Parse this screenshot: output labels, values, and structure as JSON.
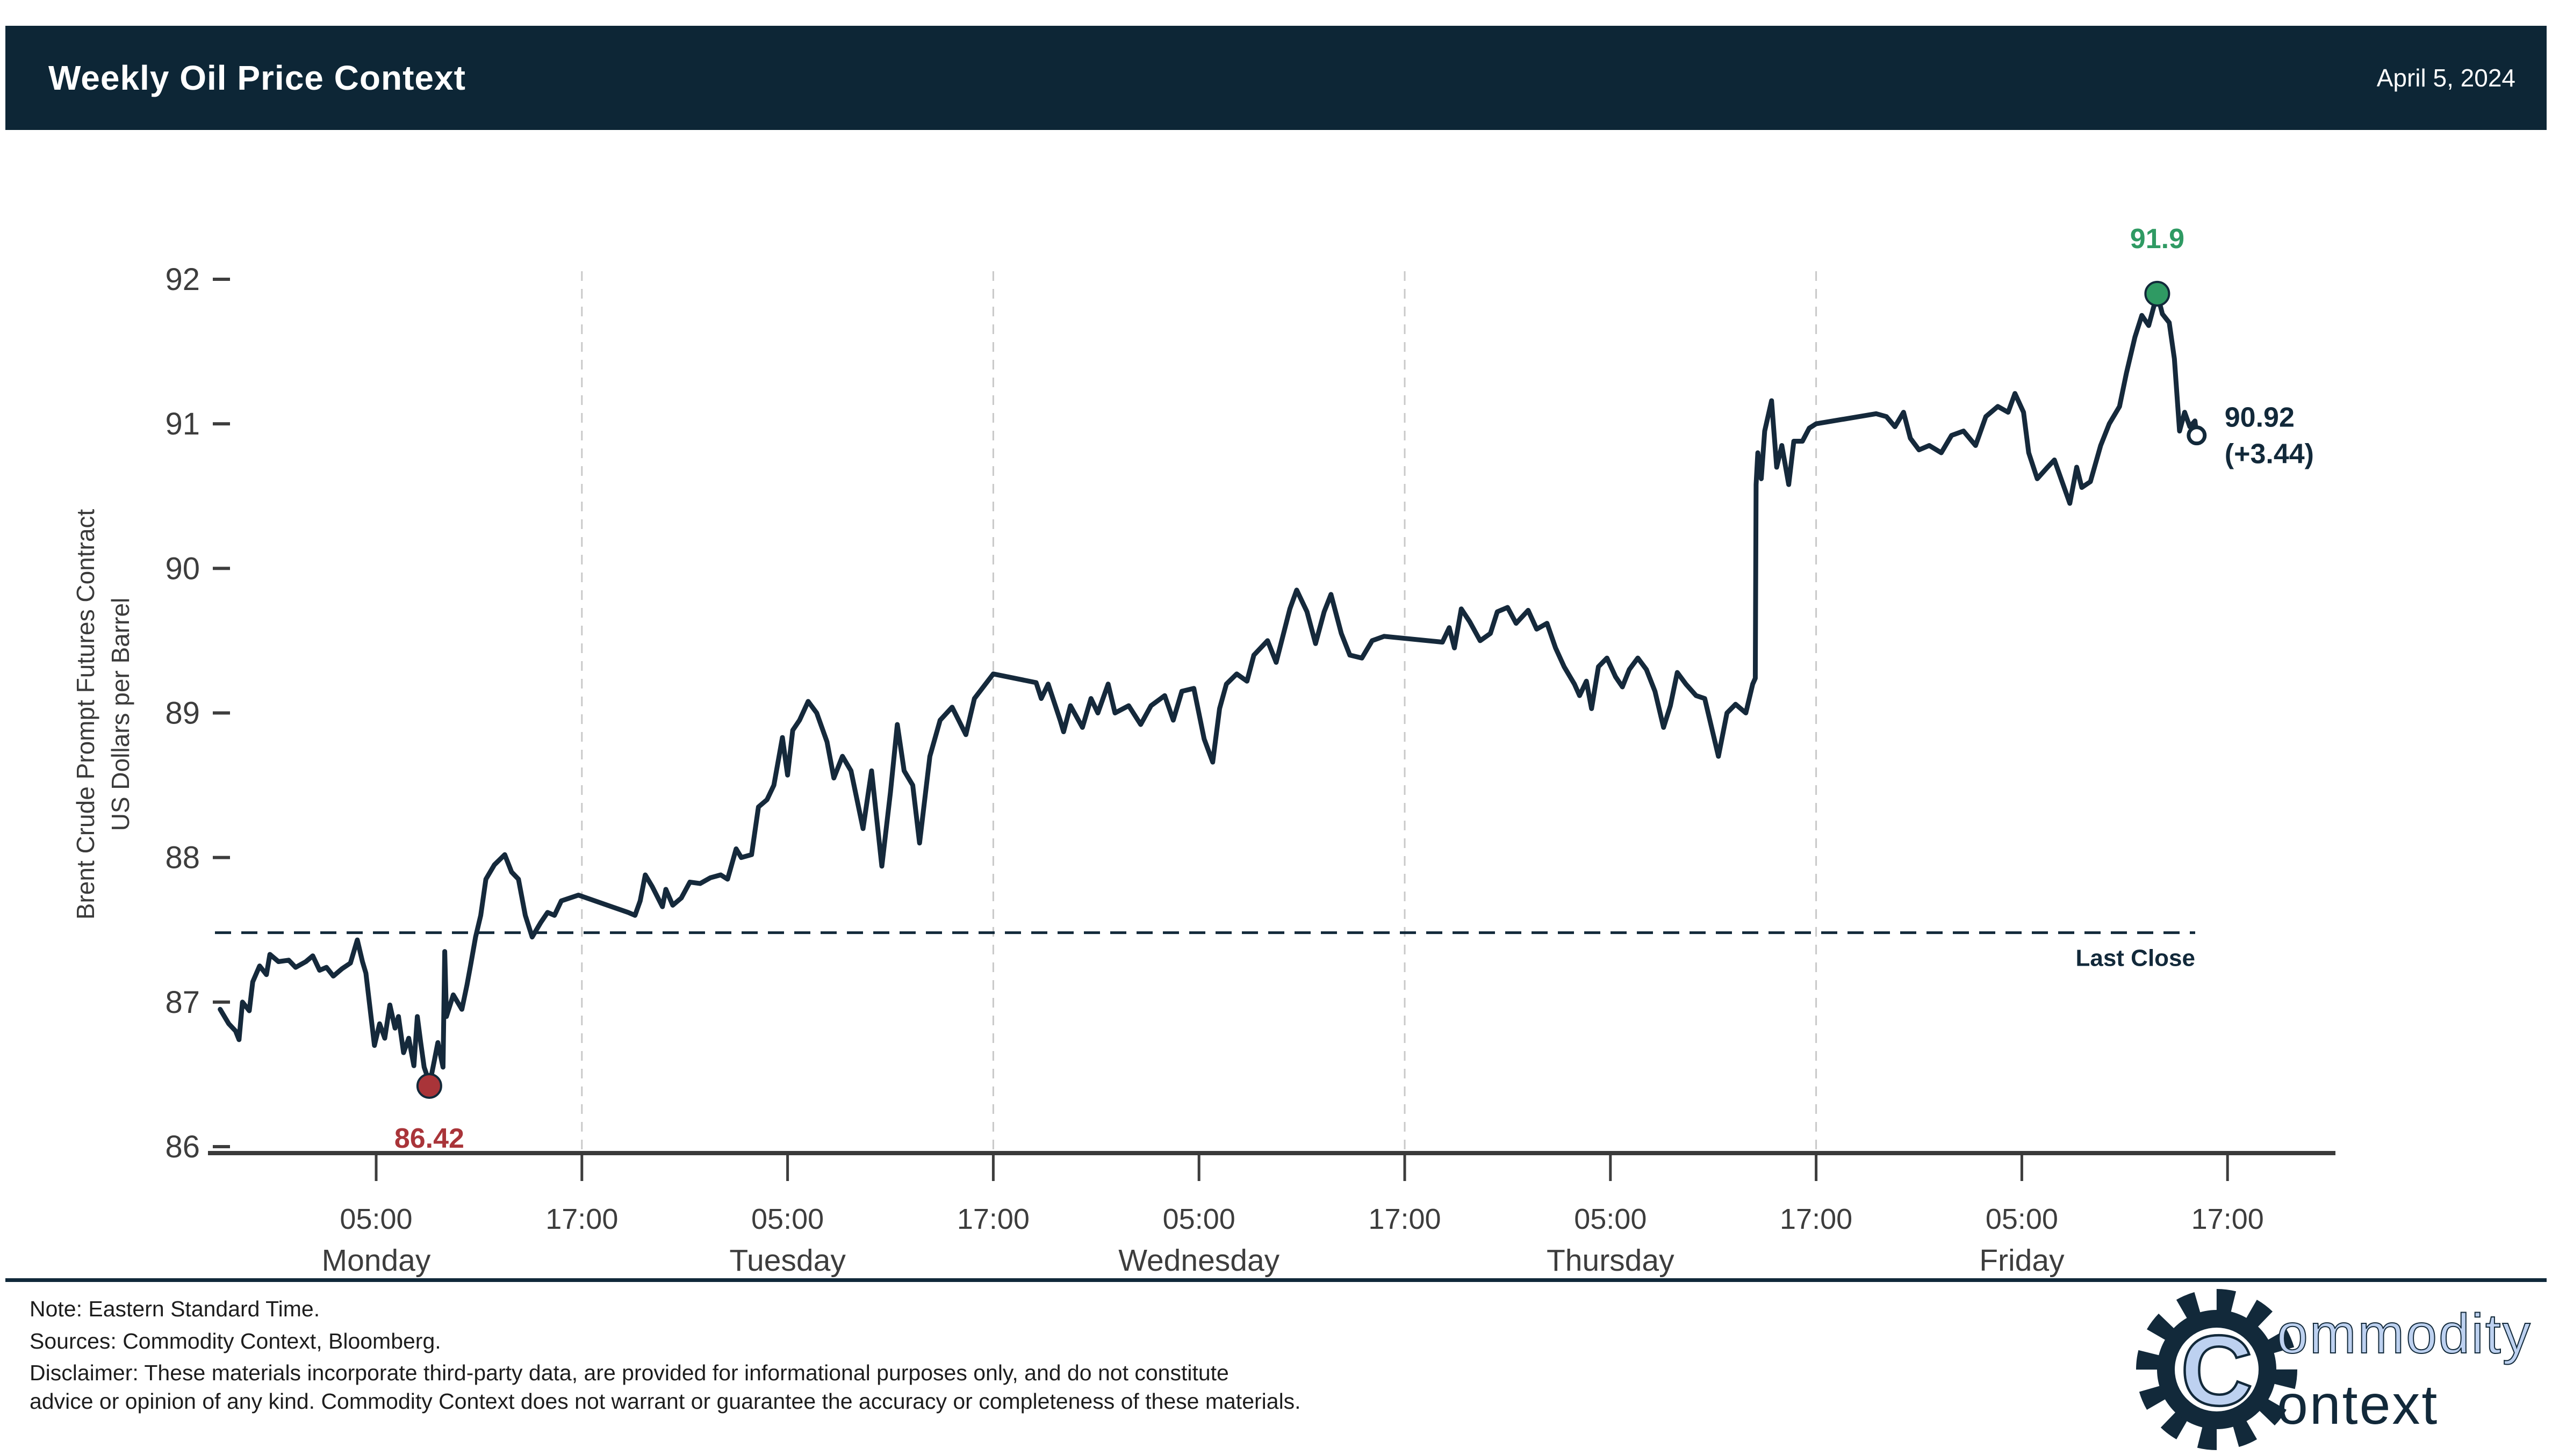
{
  "header": {
    "title": "Weekly Oil Price Context",
    "date": "April 5, 2024"
  },
  "colors": {
    "navy": "#12293a",
    "header_bg": "#0d2636",
    "line": "#15293b",
    "green": "#2f9a63",
    "red": "#a93439",
    "axis_gray": "#3a3a3a",
    "tick_text": "#3d3d3d",
    "gridline_gray": "#c9c9c9",
    "logo_blue": "#bdd1f0"
  },
  "footer": {
    "note": "Note: Eastern Standard Time.",
    "sources": "Sources: Commodity Context, Bloomberg.",
    "disclaimer_line1": "Disclaimer: These materials incorporate third-party data, are provided for informational purposes only, and do not constitute",
    "disclaimer_line2": "advice or opinion of any kind. Commodity Context does not warrant or guarantee the accuracy or completeness of these materials."
  },
  "logo": {
    "monogram": "C",
    "line1": "ommodity",
    "line2": "ontext"
  },
  "chart_data": {
    "type": "line",
    "title": "Weekly Oil Price Context",
    "ylabel_line1": "Brent Crude Prompt Futures Contract",
    "ylabel_line2": "US Dollars per Barrel",
    "ylim": [
      86,
      92
    ],
    "yticks": [
      86,
      87,
      88,
      89,
      90,
      91,
      92
    ],
    "x_unit": "hours from Monday 00:00 EST",
    "xticks": [
      {
        "h": 5,
        "label": "05:00",
        "day": "Monday"
      },
      {
        "h": 17,
        "label": "17:00",
        "day": ""
      },
      {
        "h": 29,
        "label": "05:00",
        "day": "Tuesday"
      },
      {
        "h": 41,
        "label": "17:00",
        "day": ""
      },
      {
        "h": 53,
        "label": "05:00",
        "day": "Wednesday"
      },
      {
        "h": 65,
        "label": "17:00",
        "day": ""
      },
      {
        "h": 77,
        "label": "05:00",
        "day": "Thursday"
      },
      {
        "h": 89,
        "label": "17:00",
        "day": ""
      },
      {
        "h": 101,
        "label": "05:00",
        "day": "Friday"
      },
      {
        "h": 113,
        "label": "17:00",
        "day": ""
      }
    ],
    "gridlines_hours": [
      17,
      41,
      65,
      89
    ],
    "grid": "vertical-dashed",
    "legend_position": "none",
    "last_close": {
      "value": 87.48,
      "label": "Last Close"
    },
    "annotations": {
      "max": {
        "h": 108.9,
        "price": 91.9,
        "label": "91.9"
      },
      "min": {
        "h": 8.1,
        "price": 86.42,
        "label": "86.42"
      },
      "last": {
        "h": 111.2,
        "price": 90.92,
        "label_line1": "90.92",
        "label_line2": "(+3.44)"
      }
    },
    "series": [
      {
        "name": "Brent Crude Prompt Futures Contract (USD/bbl)",
        "points": [
          [
            -4.1,
            86.95
          ],
          [
            -3.6,
            86.85
          ],
          [
            -3.2,
            86.8
          ],
          [
            -3.0,
            86.74
          ],
          [
            -2.8,
            87.0
          ],
          [
            -2.4,
            86.94
          ],
          [
            -2.2,
            87.14
          ],
          [
            -1.8,
            87.25
          ],
          [
            -1.4,
            87.19
          ],
          [
            -1.2,
            87.33
          ],
          [
            -0.7,
            87.28
          ],
          [
            -0.1,
            87.29
          ],
          [
            0.3,
            87.24
          ],
          [
            0.9,
            87.28
          ],
          [
            1.3,
            87.32
          ],
          [
            1.7,
            87.22
          ],
          [
            2.1,
            87.24
          ],
          [
            2.5,
            87.18
          ],
          [
            3.0,
            87.23
          ],
          [
            3.5,
            87.27
          ],
          [
            3.9,
            87.43
          ],
          [
            4.2,
            87.28
          ],
          [
            4.4,
            87.2
          ],
          [
            4.7,
            86.9
          ],
          [
            4.9,
            86.7
          ],
          [
            5.2,
            86.85
          ],
          [
            5.5,
            86.75
          ],
          [
            5.8,
            86.98
          ],
          [
            6.1,
            86.82
          ],
          [
            6.3,
            86.9
          ],
          [
            6.6,
            86.65
          ],
          [
            6.9,
            86.75
          ],
          [
            7.2,
            86.56
          ],
          [
            7.4,
            86.9
          ],
          [
            7.6,
            86.72
          ],
          [
            7.8,
            86.55
          ],
          [
            8.0,
            86.48
          ],
          [
            8.1,
            86.42
          ],
          [
            8.4,
            86.6
          ],
          [
            8.6,
            86.72
          ],
          [
            8.9,
            86.55
          ],
          [
            9.0,
            87.35
          ],
          [
            9.1,
            86.9
          ],
          [
            9.5,
            87.05
          ],
          [
            10.0,
            86.95
          ],
          [
            10.3,
            87.12
          ],
          [
            10.5,
            87.25
          ],
          [
            10.8,
            87.45
          ],
          [
            11.1,
            87.6
          ],
          [
            11.4,
            87.85
          ],
          [
            11.9,
            87.95
          ],
          [
            12.5,
            88.02
          ],
          [
            12.9,
            87.9
          ],
          [
            13.3,
            87.85
          ],
          [
            13.7,
            87.6
          ],
          [
            14.1,
            87.45
          ],
          [
            14.6,
            87.55
          ],
          [
            15.0,
            87.62
          ],
          [
            15.4,
            87.6
          ],
          [
            15.8,
            87.7
          ],
          [
            16.3,
            87.72
          ],
          [
            16.8,
            87.74
          ],
          [
            19.7,
            87.62
          ],
          [
            20.1,
            87.6
          ],
          [
            20.4,
            87.7
          ],
          [
            20.7,
            87.88
          ],
          [
            21.1,
            87.8
          ],
          [
            21.7,
            87.66
          ],
          [
            21.9,
            87.78
          ],
          [
            22.3,
            87.67
          ],
          [
            22.8,
            87.72
          ],
          [
            23.3,
            87.83
          ],
          [
            23.9,
            87.82
          ],
          [
            24.5,
            87.86
          ],
          [
            25.1,
            87.88
          ],
          [
            25.5,
            87.85
          ],
          [
            26.0,
            88.06
          ],
          [
            26.3,
            88.0
          ],
          [
            26.9,
            88.02
          ],
          [
            27.3,
            88.35
          ],
          [
            27.8,
            88.4
          ],
          [
            28.2,
            88.5
          ],
          [
            28.7,
            88.83
          ],
          [
            29.0,
            88.57
          ],
          [
            29.3,
            88.88
          ],
          [
            29.7,
            88.95
          ],
          [
            30.2,
            89.08
          ],
          [
            30.7,
            89.0
          ],
          [
            31.3,
            88.8
          ],
          [
            31.7,
            88.55
          ],
          [
            32.2,
            88.7
          ],
          [
            32.7,
            88.6
          ],
          [
            33.4,
            88.2
          ],
          [
            33.9,
            88.6
          ],
          [
            34.5,
            87.94
          ],
          [
            35.0,
            88.45
          ],
          [
            35.4,
            88.92
          ],
          [
            35.8,
            88.6
          ],
          [
            36.3,
            88.5
          ],
          [
            36.7,
            88.1
          ],
          [
            37.3,
            88.7
          ],
          [
            37.9,
            88.95
          ],
          [
            38.6,
            89.04
          ],
          [
            39.4,
            88.85
          ],
          [
            39.9,
            89.1
          ],
          [
            41.0,
            89.27
          ],
          [
            43.5,
            89.21
          ],
          [
            43.8,
            89.1
          ],
          [
            44.2,
            89.2
          ],
          [
            44.9,
            88.95
          ],
          [
            45.1,
            88.87
          ],
          [
            45.5,
            89.05
          ],
          [
            46.2,
            88.9
          ],
          [
            46.7,
            89.1
          ],
          [
            47.1,
            89.0
          ],
          [
            47.7,
            89.2
          ],
          [
            48.1,
            89.0
          ],
          [
            48.9,
            89.05
          ],
          [
            49.6,
            88.92
          ],
          [
            50.2,
            89.05
          ],
          [
            51.0,
            89.12
          ],
          [
            51.5,
            88.95
          ],
          [
            52.0,
            89.15
          ],
          [
            52.7,
            89.17
          ],
          [
            53.3,
            88.82
          ],
          [
            53.8,
            88.66
          ],
          [
            54.2,
            89.03
          ],
          [
            54.6,
            89.2
          ],
          [
            55.2,
            89.27
          ],
          [
            55.8,
            89.22
          ],
          [
            56.2,
            89.4
          ],
          [
            57.0,
            89.5
          ],
          [
            57.5,
            89.35
          ],
          [
            58.3,
            89.72
          ],
          [
            58.7,
            89.85
          ],
          [
            59.3,
            89.7
          ],
          [
            59.8,
            89.48
          ],
          [
            60.3,
            89.7
          ],
          [
            60.7,
            89.82
          ],
          [
            61.3,
            89.55
          ],
          [
            61.8,
            89.4
          ],
          [
            62.5,
            89.38
          ],
          [
            63.1,
            89.5
          ],
          [
            63.8,
            89.53
          ],
          [
            67.2,
            89.49
          ],
          [
            67.6,
            89.59
          ],
          [
            67.9,
            89.45
          ],
          [
            68.3,
            89.72
          ],
          [
            68.8,
            89.63
          ],
          [
            69.4,
            89.5
          ],
          [
            70.0,
            89.55
          ],
          [
            70.4,
            89.7
          ],
          [
            71.0,
            89.73
          ],
          [
            71.5,
            89.62
          ],
          [
            72.2,
            89.71
          ],
          [
            72.7,
            89.58
          ],
          [
            73.3,
            89.62
          ],
          [
            73.8,
            89.45
          ],
          [
            74.3,
            89.32
          ],
          [
            74.9,
            89.2
          ],
          [
            75.2,
            89.12
          ],
          [
            75.6,
            89.22
          ],
          [
            75.9,
            89.03
          ],
          [
            76.3,
            89.32
          ],
          [
            76.8,
            89.38
          ],
          [
            77.3,
            89.25
          ],
          [
            77.7,
            89.18
          ],
          [
            78.1,
            89.3
          ],
          [
            78.6,
            89.38
          ],
          [
            79.1,
            89.3
          ],
          [
            79.6,
            89.15
          ],
          [
            80.1,
            88.9
          ],
          [
            80.5,
            89.05
          ],
          [
            80.9,
            89.28
          ],
          [
            81.4,
            89.2
          ],
          [
            82.0,
            89.12
          ],
          [
            82.5,
            89.1
          ],
          [
            83.3,
            88.7
          ],
          [
            83.8,
            89.0
          ],
          [
            84.3,
            89.06
          ],
          [
            84.9,
            89.0
          ],
          [
            85.3,
            89.2
          ],
          [
            85.45,
            89.24
          ],
          [
            85.5,
            90.58
          ],
          [
            85.6,
            90.8
          ],
          [
            85.8,
            90.62
          ],
          [
            86.0,
            90.95
          ],
          [
            86.4,
            91.16
          ],
          [
            86.7,
            90.7
          ],
          [
            87.0,
            90.85
          ],
          [
            87.4,
            90.58
          ],
          [
            87.7,
            90.88
          ],
          [
            88.2,
            90.88
          ],
          [
            88.6,
            90.97
          ],
          [
            89.0,
            91.0
          ],
          [
            92.5,
            91.07
          ],
          [
            93.1,
            91.05
          ],
          [
            93.6,
            90.98
          ],
          [
            94.1,
            91.08
          ],
          [
            94.5,
            90.9
          ],
          [
            95.0,
            90.82
          ],
          [
            95.6,
            90.85
          ],
          [
            96.3,
            90.8
          ],
          [
            96.9,
            90.92
          ],
          [
            97.6,
            90.95
          ],
          [
            98.3,
            90.85
          ],
          [
            98.9,
            91.05
          ],
          [
            99.6,
            91.12
          ],
          [
            100.2,
            91.08
          ],
          [
            100.6,
            91.21
          ],
          [
            101.1,
            91.08
          ],
          [
            101.4,
            90.8
          ],
          [
            101.9,
            90.62
          ],
          [
            102.5,
            90.7
          ],
          [
            102.9,
            90.75
          ],
          [
            103.5,
            90.55
          ],
          [
            103.8,
            90.45
          ],
          [
            104.2,
            90.7
          ],
          [
            104.5,
            90.56
          ],
          [
            105.0,
            90.6
          ],
          [
            105.6,
            90.85
          ],
          [
            106.1,
            91.0
          ],
          [
            106.7,
            91.12
          ],
          [
            107.1,
            91.35
          ],
          [
            107.6,
            91.6
          ],
          [
            108.0,
            91.75
          ],
          [
            108.4,
            91.68
          ],
          [
            108.9,
            91.9
          ],
          [
            109.2,
            91.76
          ],
          [
            109.6,
            91.7
          ],
          [
            109.9,
            91.45
          ],
          [
            110.2,
            90.95
          ],
          [
            110.5,
            91.08
          ],
          [
            110.8,
            90.98
          ],
          [
            111.1,
            91.02
          ],
          [
            111.2,
            90.92
          ]
        ]
      }
    ]
  }
}
